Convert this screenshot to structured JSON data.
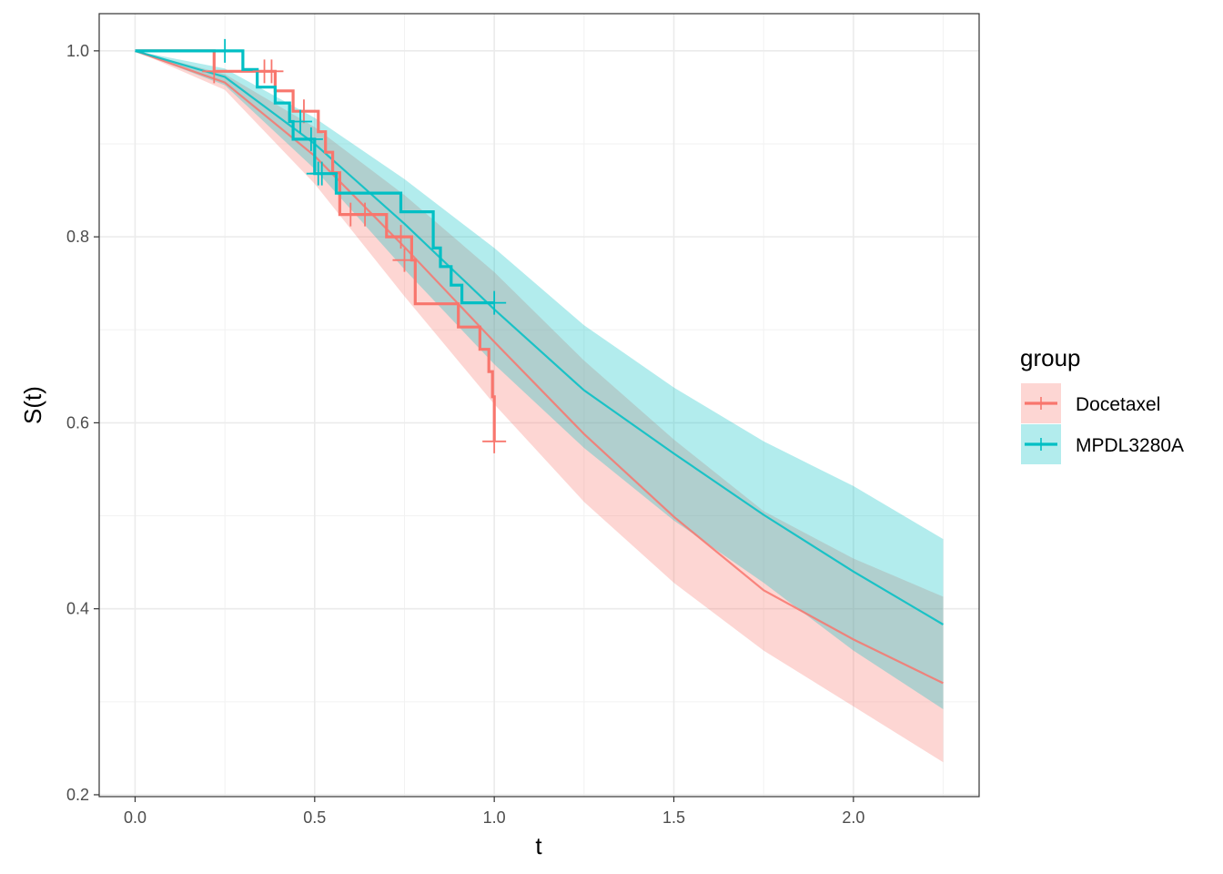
{
  "chart_data": {
    "type": "line",
    "xlabel": "t",
    "ylabel": "S(t)",
    "xlim": [
      -0.1,
      2.35
    ],
    "ylim": [
      0.198,
      1.04
    ],
    "x_ticks": [
      0.0,
      0.5,
      1.0,
      1.5,
      2.0
    ],
    "x_tick_labels": [
      "0.0",
      "0.5",
      "1.0",
      "1.5",
      "2.0"
    ],
    "y_ticks": [
      0.2,
      0.4,
      0.6,
      0.8,
      1.0
    ],
    "y_tick_labels": [
      "0.2",
      "0.4",
      "0.6",
      "0.8",
      "1.0"
    ],
    "grid": true,
    "legend": {
      "title": "group",
      "position": "right",
      "entries": [
        {
          "label": "Docetaxel",
          "color": "#F8766D"
        },
        {
          "label": "MPDL3280A",
          "color": "#00BFC4"
        }
      ]
    },
    "series": [
      {
        "name": "Docetaxel",
        "color": "#F8766D",
        "fitted": {
          "x": [
            0,
            0.25,
            0.5,
            0.75,
            1.0,
            1.25,
            1.5,
            1.75,
            2.0,
            2.25
          ],
          "y": [
            1.0,
            0.966,
            0.887,
            0.789,
            0.687,
            0.588,
            0.499,
            0.42,
            0.367,
            0.32
          ],
          "lower": [
            1.0,
            0.958,
            0.857,
            0.736,
            0.62,
            0.515,
            0.428,
            0.355,
            0.295,
            0.235
          ],
          "upper": [
            1.0,
            0.975,
            0.918,
            0.845,
            0.762,
            0.667,
            0.582,
            0.505,
            0.454,
            0.413
          ]
        },
        "km_steps": {
          "x": [
            0,
            0.22,
            0.36,
            0.39,
            0.44,
            0.51,
            0.53,
            0.55,
            0.57,
            0.7,
            0.77,
            0.78,
            0.9,
            0.96,
            0.985,
            0.995,
            1.0
          ],
          "y": [
            1.0,
            0.978,
            0.978,
            0.957,
            0.935,
            0.913,
            0.891,
            0.869,
            0.824,
            0.8,
            0.775,
            0.728,
            0.703,
            0.679,
            0.655,
            0.628,
            0.58
          ]
        },
        "censor_marks": {
          "x": [
            0.22,
            0.36,
            0.38,
            0.47,
            0.6,
            0.64,
            0.74,
            0.75,
            1.0
          ],
          "y": [
            0.978,
            0.978,
            0.978,
            0.935,
            0.824,
            0.824,
            0.8,
            0.775,
            0.58
          ]
        }
      },
      {
        "name": "MPDL3280A",
        "color": "#00BFC4",
        "fitted": {
          "x": [
            0,
            0.25,
            0.5,
            0.75,
            1.0,
            1.25,
            1.5,
            1.75,
            2.0,
            2.25
          ],
          "y": [
            1.0,
            0.972,
            0.9,
            0.814,
            0.722,
            0.635,
            0.567,
            0.501,
            0.44,
            0.383
          ],
          "lower": [
            1.0,
            0.963,
            0.873,
            0.765,
            0.663,
            0.573,
            0.495,
            0.428,
            0.355,
            0.292
          ],
          "upper": [
            1.0,
            0.981,
            0.928,
            0.862,
            0.788,
            0.705,
            0.638,
            0.58,
            0.532,
            0.475
          ]
        },
        "km_steps": {
          "x": [
            0,
            0.3,
            0.34,
            0.39,
            0.43,
            0.44,
            0.5,
            0.56,
            0.74,
            0.83,
            0.85,
            0.88,
            0.91,
            1.0
          ],
          "y": [
            1.0,
            0.98,
            0.961,
            0.944,
            0.924,
            0.905,
            0.868,
            0.847,
            0.827,
            0.788,
            0.768,
            0.748,
            0.729,
            0.729
          ]
        },
        "censor_marks": {
          "x": [
            0.25,
            0.46,
            0.49,
            0.51,
            0.52,
            1.0
          ],
          "y": [
            1.0,
            0.924,
            0.905,
            0.868,
            0.868,
            0.729
          ]
        }
      }
    ]
  }
}
